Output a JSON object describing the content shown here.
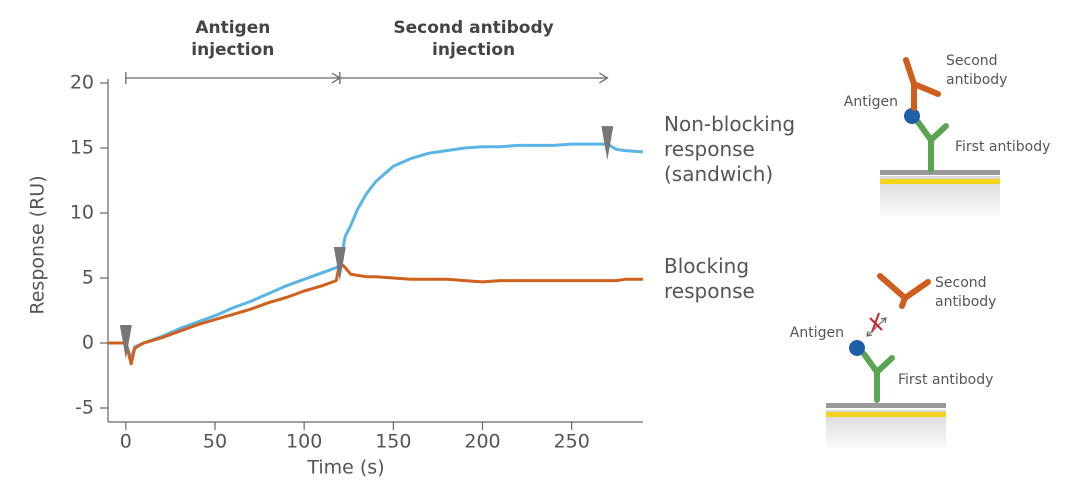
{
  "chart_data": {
    "type": "line",
    "x_label": "Time (s)",
    "y_label": "Response (RU)",
    "x": [
      -10,
      0,
      3,
      5,
      10,
      20,
      30,
      40,
      50,
      60,
      70,
      80,
      90,
      100,
      110,
      118,
      120,
      123,
      126,
      130,
      135,
      140,
      150,
      160,
      170,
      180,
      190,
      200,
      210,
      220,
      230,
      240,
      250,
      260,
      270,
      275,
      280,
      290
    ],
    "series": [
      {
        "name": "Non-blocking response (sandwich)",
        "color": "#5ab4e5",
        "values": [
          0,
          0,
          -1.2,
          -0.3,
          0,
          0.5,
          1.1,
          1.6,
          2.1,
          2.7,
          3.2,
          3.8,
          4.4,
          4.9,
          5.4,
          5.8,
          6.0,
          8.2,
          9.0,
          10.3,
          11.5,
          12.4,
          13.6,
          14.2,
          14.6,
          14.8,
          15.0,
          15.1,
          15.1,
          15.2,
          15.2,
          15.2,
          15.3,
          15.3,
          15.3,
          14.9,
          14.8,
          14.7
        ]
      },
      {
        "name": "Blocking response",
        "color": "#d0601e",
        "values": [
          0,
          0,
          -1.6,
          -0.4,
          0,
          0.4,
          0.9,
          1.4,
          1.8,
          2.2,
          2.6,
          3.1,
          3.5,
          4.0,
          4.4,
          4.8,
          6.2,
          5.8,
          5.3,
          5.2,
          5.1,
          5.1,
          5.0,
          4.9,
          4.9,
          4.9,
          4.8,
          4.7,
          4.8,
          4.8,
          4.8,
          4.8,
          4.8,
          4.8,
          4.8,
          4.8,
          4.9,
          4.9
        ]
      }
    ],
    "injection_markers": [
      0,
      120,
      270
    ],
    "annotations": [
      {
        "lines": [
          "Antigen",
          "injection"
        ],
        "start": 0,
        "end": 120
      },
      {
        "lines": [
          "Second antibody",
          "injection"
        ],
        "start": 120,
        "end": 270
      }
    ],
    "xlim": [
      -10,
      290
    ],
    "xticks": [
      0,
      50,
      100,
      150,
      200,
      250
    ],
    "ylim": [
      -5,
      20
    ],
    "yticks": [
      -5,
      0,
      5,
      10,
      15,
      20
    ]
  },
  "diagrams": [
    {
      "antigen": "Antigen",
      "second_antibody": [
        "Second",
        "antibody"
      ],
      "first_antibody": "First antibody"
    },
    {
      "antigen": "Antigen",
      "second_antibody": [
        "Second",
        "antibody"
      ],
      "first_antibody": "First antibody"
    }
  ]
}
